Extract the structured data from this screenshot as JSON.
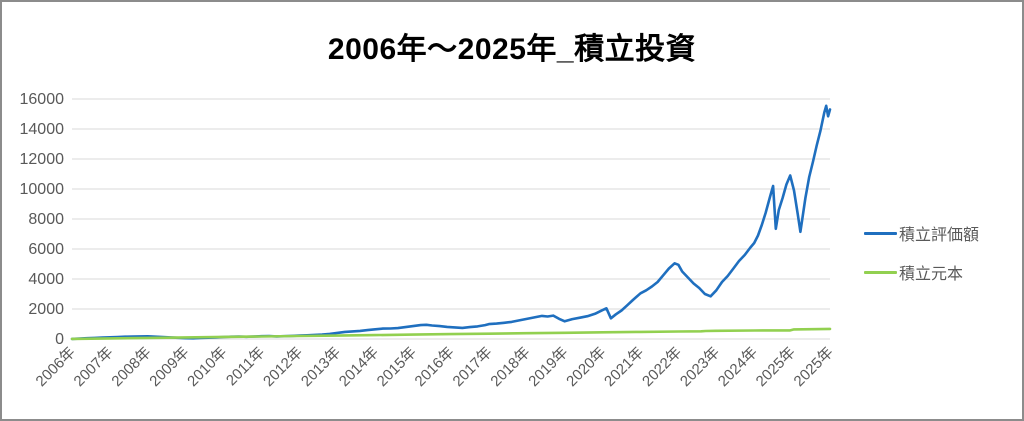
{
  "window": {
    "background": "#ffffff",
    "border_color": "#8c8c8c"
  },
  "colors": {
    "grid": "#d9d9d9",
    "axis_text": "#595959",
    "title_text": "#000000",
    "series_valuation": "#1f6fbf",
    "series_principal": "#92d050"
  },
  "chart_data": {
    "type": "line",
    "title": "2006年〜2025年_積立投資",
    "grid": true,
    "legend": {
      "position": "right",
      "entries": [
        {
          "label": "積立評価額",
          "color": "#1f6fbf"
        },
        {
          "label": "積立元本",
          "color": "#92d050"
        }
      ]
    },
    "x_axis": {
      "range_years": [
        2006,
        2026
      ],
      "tick_labels": [
        "2006年",
        "2007年",
        "2008年",
        "2009年",
        "2010年",
        "2011年",
        "2012年",
        "2013年",
        "2014年",
        "2015年",
        "2016年",
        "2017年",
        "2018年",
        "2019年",
        "2020年",
        "2021年",
        "2022年",
        "2023年",
        "2024年",
        "2025年",
        "2025年"
      ]
    },
    "y_axis": {
      "min": 0,
      "max": 16000,
      "step": 2000,
      "tick_labels": [
        "0",
        "2000",
        "4000",
        "6000",
        "8000",
        "10000",
        "12000",
        "14000",
        "16000"
      ]
    },
    "series": [
      {
        "name": "積立評価額",
        "color": "#1f6fbf",
        "points": [
          [
            2006.0,
            10
          ],
          [
            2006.2,
            30
          ],
          [
            2006.4,
            55
          ],
          [
            2006.6,
            75
          ],
          [
            2006.8,
            95
          ],
          [
            2007.0,
            115
          ],
          [
            2007.2,
            135
          ],
          [
            2007.4,
            155
          ],
          [
            2007.6,
            165
          ],
          [
            2007.8,
            175
          ],
          [
            2008.0,
            180
          ],
          [
            2008.2,
            155
          ],
          [
            2008.4,
            130
          ],
          [
            2008.6,
            110
          ],
          [
            2008.8,
            80
          ],
          [
            2009.0,
            55
          ],
          [
            2009.2,
            50
          ],
          [
            2009.4,
            65
          ],
          [
            2009.6,
            85
          ],
          [
            2009.8,
            105
          ],
          [
            2010.0,
            135
          ],
          [
            2010.2,
            155
          ],
          [
            2010.4,
            165
          ],
          [
            2010.6,
            150
          ],
          [
            2010.8,
            165
          ],
          [
            2011.0,
            185
          ],
          [
            2011.2,
            195
          ],
          [
            2011.4,
            175
          ],
          [
            2011.6,
            185
          ],
          [
            2011.8,
            205
          ],
          [
            2012.0,
            230
          ],
          [
            2012.2,
            250
          ],
          [
            2012.4,
            270
          ],
          [
            2012.6,
            300
          ],
          [
            2012.8,
            340
          ],
          [
            2013.0,
            410
          ],
          [
            2013.2,
            470
          ],
          [
            2013.4,
            510
          ],
          [
            2013.6,
            540
          ],
          [
            2013.8,
            590
          ],
          [
            2014.0,
            650
          ],
          [
            2014.2,
            690
          ],
          [
            2014.4,
            700
          ],
          [
            2014.6,
            730
          ],
          [
            2014.8,
            790
          ],
          [
            2015.0,
            860
          ],
          [
            2015.2,
            930
          ],
          [
            2015.35,
            950
          ],
          [
            2015.5,
            900
          ],
          [
            2015.7,
            860
          ],
          [
            2015.9,
            810
          ],
          [
            2016.1,
            770
          ],
          [
            2016.3,
            740
          ],
          [
            2016.5,
            790
          ],
          [
            2016.7,
            840
          ],
          [
            2016.9,
            930
          ],
          [
            2017.0,
            990
          ],
          [
            2017.2,
            1030
          ],
          [
            2017.4,
            1080
          ],
          [
            2017.6,
            1140
          ],
          [
            2017.8,
            1240
          ],
          [
            2018.0,
            1340
          ],
          [
            2018.2,
            1440
          ],
          [
            2018.4,
            1540
          ],
          [
            2018.55,
            1500
          ],
          [
            2018.7,
            1560
          ],
          [
            2018.85,
            1350
          ],
          [
            2019.0,
            1180
          ],
          [
            2019.2,
            1330
          ],
          [
            2019.4,
            1420
          ],
          [
            2019.6,
            1520
          ],
          [
            2019.8,
            1680
          ],
          [
            2020.0,
            1930
          ],
          [
            2020.1,
            2050
          ],
          [
            2020.22,
            1380
          ],
          [
            2020.35,
            1650
          ],
          [
            2020.5,
            1900
          ],
          [
            2020.65,
            2250
          ],
          [
            2020.8,
            2600
          ],
          [
            2021.0,
            3050
          ],
          [
            2021.15,
            3250
          ],
          [
            2021.3,
            3500
          ],
          [
            2021.45,
            3800
          ],
          [
            2021.6,
            4250
          ],
          [
            2021.75,
            4700
          ],
          [
            2021.9,
            5050
          ],
          [
            2022.0,
            4950
          ],
          [
            2022.1,
            4500
          ],
          [
            2022.25,
            4100
          ],
          [
            2022.4,
            3700
          ],
          [
            2022.55,
            3400
          ],
          [
            2022.7,
            3000
          ],
          [
            2022.85,
            2850
          ],
          [
            2023.0,
            3250
          ],
          [
            2023.15,
            3800
          ],
          [
            2023.3,
            4200
          ],
          [
            2023.45,
            4700
          ],
          [
            2023.6,
            5200
          ],
          [
            2023.75,
            5600
          ],
          [
            2023.9,
            6100
          ],
          [
            2024.0,
            6400
          ],
          [
            2024.1,
            6900
          ],
          [
            2024.2,
            7600
          ],
          [
            2024.3,
            8400
          ],
          [
            2024.42,
            9500
          ],
          [
            2024.5,
            10200
          ],
          [
            2024.57,
            7350
          ],
          [
            2024.65,
            8600
          ],
          [
            2024.75,
            9400
          ],
          [
            2024.85,
            10300
          ],
          [
            2024.95,
            10900
          ],
          [
            2025.05,
            9900
          ],
          [
            2025.15,
            8300
          ],
          [
            2025.22,
            7150
          ],
          [
            2025.35,
            9400
          ],
          [
            2025.45,
            10800
          ],
          [
            2025.55,
            11800
          ],
          [
            2025.65,
            12900
          ],
          [
            2025.75,
            13900
          ],
          [
            2025.85,
            15100
          ],
          [
            2025.9,
            15550
          ],
          [
            2025.95,
            14850
          ],
          [
            2026.0,
            15300
          ]
        ]
      },
      {
        "name": "積立元本",
        "color": "#92d050",
        "points": [
          [
            2006.0,
            10
          ],
          [
            2007.0,
            42
          ],
          [
            2008.0,
            74
          ],
          [
            2009.0,
            106
          ],
          [
            2010.0,
            138
          ],
          [
            2011.0,
            168
          ],
          [
            2012.0,
            198
          ],
          [
            2013.0,
            230
          ],
          [
            2014.0,
            262
          ],
          [
            2015.0,
            294
          ],
          [
            2016.0,
            324
          ],
          [
            2017.0,
            354
          ],
          [
            2018.0,
            384
          ],
          [
            2019.0,
            414
          ],
          [
            2020.0,
            446
          ],
          [
            2021.0,
            476
          ],
          [
            2022.0,
            500
          ],
          [
            2022.6,
            515
          ],
          [
            2022.72,
            535
          ],
          [
            2023.0,
            545
          ],
          [
            2024.0,
            565
          ],
          [
            2024.95,
            575
          ],
          [
            2025.05,
            640
          ],
          [
            2026.0,
            675
          ]
        ]
      }
    ]
  }
}
